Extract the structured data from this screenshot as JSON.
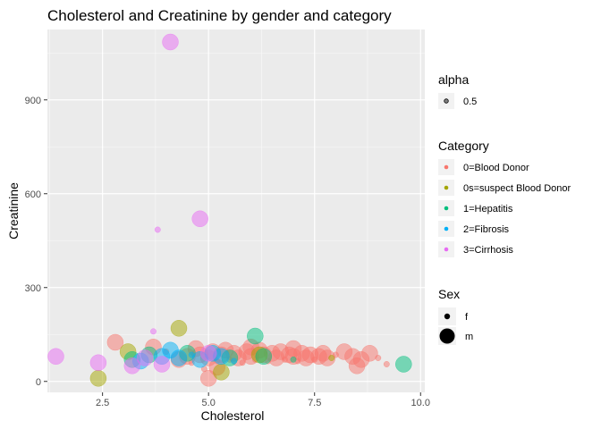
{
  "chart_data": {
    "type": "scatter",
    "title": "Cholesterol and Creatinine by gender and category",
    "xlabel": "Cholesterol",
    "ylabel": "Creatinine",
    "xlim": [
      1.2,
      10.1
    ],
    "ylim": [
      -35,
      1125
    ],
    "x_ticks": [
      2.5,
      5.0,
      7.5,
      10.0
    ],
    "x_tick_labels": [
      "2.5",
      "5.0",
      "7.5",
      "10.0"
    ],
    "y_ticks": [
      0,
      300,
      600,
      900
    ],
    "y_tick_labels": [
      "0",
      "300",
      "600",
      "900"
    ],
    "grid": true,
    "panel_background": "#ebebeb",
    "point_alpha": 0.5,
    "legends": {
      "alpha": {
        "title": "alpha",
        "entries": [
          "0.5"
        ]
      },
      "category": {
        "title": "Category",
        "entries": [
          {
            "label": "0=Blood Donor",
            "color": "#F8766D"
          },
          {
            "label": "0s=suspect Blood Donor",
            "color": "#A3A500"
          },
          {
            "label": "1=Hepatitis",
            "color": "#00BF7D"
          },
          {
            "label": "2=Fibrosis",
            "color": "#00B0F6"
          },
          {
            "label": "3=Cirrhosis",
            "color": "#E76BF3"
          }
        ]
      },
      "sex": {
        "title": "Sex",
        "entries": [
          "f",
          "m"
        ]
      }
    },
    "series": [
      {
        "category": "0=Blood Donor",
        "color": "#F8766D",
        "points": [
          {
            "x": 2.8,
            "y": 125,
            "sex": "m"
          },
          {
            "x": 3.7,
            "y": 110,
            "sex": "m"
          },
          {
            "x": 4.0,
            "y": 95,
            "sex": "f"
          },
          {
            "x": 4.3,
            "y": 70,
            "sex": "m"
          },
          {
            "x": 4.5,
            "y": 80,
            "sex": "m"
          },
          {
            "x": 4.6,
            "y": 60,
            "sex": "f"
          },
          {
            "x": 4.8,
            "y": 85,
            "sex": "m"
          },
          {
            "x": 4.9,
            "y": 40,
            "sex": "f"
          },
          {
            "x": 5.0,
            "y": 75,
            "sex": "m"
          },
          {
            "x": 5.0,
            "y": 10,
            "sex": "m"
          },
          {
            "x": 5.1,
            "y": 95,
            "sex": "m"
          },
          {
            "x": 5.2,
            "y": 65,
            "sex": "f"
          },
          {
            "x": 5.3,
            "y": 85,
            "sex": "m"
          },
          {
            "x": 5.4,
            "y": 100,
            "sex": "m"
          },
          {
            "x": 5.5,
            "y": 70,
            "sex": "f"
          },
          {
            "x": 5.6,
            "y": 90,
            "sex": "m"
          },
          {
            "x": 5.7,
            "y": 75,
            "sex": "m"
          },
          {
            "x": 5.8,
            "y": 60,
            "sex": "f"
          },
          {
            "x": 5.9,
            "y": 95,
            "sex": "m"
          },
          {
            "x": 6.0,
            "y": 80,
            "sex": "m"
          },
          {
            "x": 6.1,
            "y": 70,
            "sex": "f"
          },
          {
            "x": 6.2,
            "y": 100,
            "sex": "m"
          },
          {
            "x": 6.3,
            "y": 85,
            "sex": "m"
          },
          {
            "x": 6.4,
            "y": 65,
            "sex": "f"
          },
          {
            "x": 6.5,
            "y": 90,
            "sex": "m"
          },
          {
            "x": 6.6,
            "y": 75,
            "sex": "m"
          },
          {
            "x": 6.7,
            "y": 95,
            "sex": "m"
          },
          {
            "x": 6.8,
            "y": 70,
            "sex": "f"
          },
          {
            "x": 6.9,
            "y": 85,
            "sex": "m"
          },
          {
            "x": 7.0,
            "y": 80,
            "sex": "m"
          },
          {
            "x": 7.1,
            "y": 65,
            "sex": "f"
          },
          {
            "x": 7.2,
            "y": 90,
            "sex": "m"
          },
          {
            "x": 7.3,
            "y": 75,
            "sex": "m"
          },
          {
            "x": 7.4,
            "y": 85,
            "sex": "m"
          },
          {
            "x": 7.5,
            "y": 70,
            "sex": "f"
          },
          {
            "x": 7.6,
            "y": 80,
            "sex": "m"
          },
          {
            "x": 7.7,
            "y": 90,
            "sex": "m"
          },
          {
            "x": 7.8,
            "y": 75,
            "sex": "m"
          },
          {
            "x": 8.0,
            "y": 85,
            "sex": "f"
          },
          {
            "x": 8.2,
            "y": 95,
            "sex": "m"
          },
          {
            "x": 8.4,
            "y": 80,
            "sex": "m"
          },
          {
            "x": 8.6,
            "y": 70,
            "sex": "m"
          },
          {
            "x": 8.8,
            "y": 90,
            "sex": "m"
          },
          {
            "x": 9.0,
            "y": 75,
            "sex": "f"
          },
          {
            "x": 9.2,
            "y": 55,
            "sex": "f"
          },
          {
            "x": 8.5,
            "y": 50,
            "sex": "m"
          },
          {
            "x": 5.2,
            "y": 45,
            "sex": "m"
          },
          {
            "x": 6.0,
            "y": 110,
            "sex": "m"
          },
          {
            "x": 7.0,
            "y": 105,
            "sex": "m"
          },
          {
            "x": 4.7,
            "y": 105,
            "sex": "m"
          }
        ]
      },
      {
        "category": "0s=suspect Blood Donor",
        "color": "#A3A500",
        "points": [
          {
            "x": 2.4,
            "y": 10,
            "sex": "m"
          },
          {
            "x": 3.1,
            "y": 95,
            "sex": "m"
          },
          {
            "x": 4.3,
            "y": 170,
            "sex": "m"
          },
          {
            "x": 5.3,
            "y": 30,
            "sex": "m"
          },
          {
            "x": 6.2,
            "y": 85,
            "sex": "m"
          },
          {
            "x": 7.9,
            "y": 75,
            "sex": "f"
          }
        ]
      },
      {
        "category": "1=Hepatitis",
        "color": "#00BF7D",
        "points": [
          {
            "x": 3.2,
            "y": 70,
            "sex": "m"
          },
          {
            "x": 3.6,
            "y": 85,
            "sex": "m"
          },
          {
            "x": 4.5,
            "y": 90,
            "sex": "m"
          },
          {
            "x": 5.5,
            "y": 75,
            "sex": "m"
          },
          {
            "x": 6.1,
            "y": 145,
            "sex": "m"
          },
          {
            "x": 6.3,
            "y": 80,
            "sex": "m"
          },
          {
            "x": 7.0,
            "y": 70,
            "sex": "f"
          },
          {
            "x": 9.6,
            "y": 55,
            "sex": "m"
          }
        ]
      },
      {
        "category": "2=Fibrosis",
        "color": "#00B0F6",
        "points": [
          {
            "x": 3.4,
            "y": 65,
            "sex": "m"
          },
          {
            "x": 3.9,
            "y": 80,
            "sex": "m"
          },
          {
            "x": 4.1,
            "y": 100,
            "sex": "m"
          },
          {
            "x": 4.3,
            "y": 75,
            "sex": "m"
          },
          {
            "x": 4.6,
            "y": 85,
            "sex": "f"
          },
          {
            "x": 4.8,
            "y": 70,
            "sex": "m"
          },
          {
            "x": 5.1,
            "y": 90,
            "sex": "m"
          },
          {
            "x": 5.3,
            "y": 80,
            "sex": "m"
          },
          {
            "x": 5.6,
            "y": 65,
            "sex": "f"
          }
        ]
      },
      {
        "category": "3=Cirrhosis",
        "color": "#E76BF3",
        "points": [
          {
            "x": 1.4,
            "y": 80,
            "sex": "m"
          },
          {
            "x": 2.4,
            "y": 60,
            "sex": "m"
          },
          {
            "x": 3.2,
            "y": 50,
            "sex": "m"
          },
          {
            "x": 3.5,
            "y": 75,
            "sex": "m"
          },
          {
            "x": 3.7,
            "y": 160,
            "sex": "f"
          },
          {
            "x": 3.8,
            "y": 485,
            "sex": "f"
          },
          {
            "x": 3.9,
            "y": 55,
            "sex": "m"
          },
          {
            "x": 4.1,
            "y": 1085,
            "sex": "m"
          },
          {
            "x": 4.8,
            "y": 520,
            "sex": "m"
          },
          {
            "x": 5.0,
            "y": 90,
            "sex": "m"
          }
        ]
      }
    ]
  }
}
